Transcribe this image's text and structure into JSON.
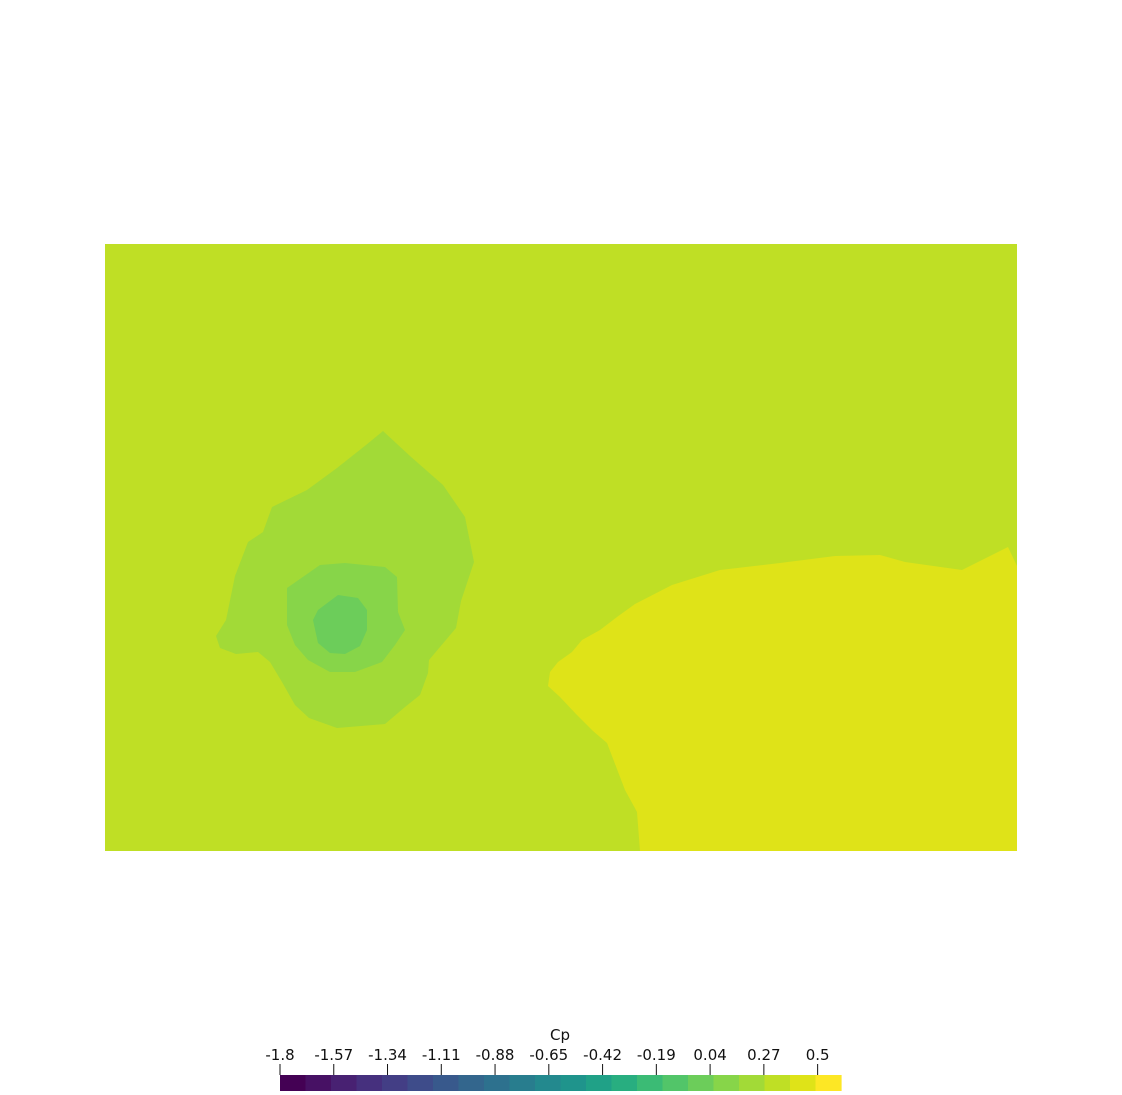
{
  "chart_data": {
    "type": "heatmap",
    "title": "",
    "variable": "Cp",
    "colorbar": {
      "title": "Cp",
      "tick_labels": [
        "-1.8",
        "-1.57",
        "-1.34",
        "-1.11",
        "-0.88",
        "-0.65",
        "-0.42",
        "-0.19",
        "0.04",
        "0.27",
        "0.5"
      ],
      "tick_values": [
        -1.8,
        -1.57,
        -1.34,
        -1.11,
        -0.88,
        -0.65,
        -0.42,
        -0.19,
        0.04,
        0.27,
        0.5
      ],
      "range": [
        -1.8,
        0.6
      ],
      "band_count": 22,
      "colormap": "viridis",
      "band_colors": [
        "#440154",
        "#471164",
        "#482172",
        "#46307e",
        "#433e85",
        "#3e4c8a",
        "#38598c",
        "#33668d",
        "#2d718e",
        "#287d8e",
        "#23898e",
        "#1f948c",
        "#20a187",
        "#28ae80",
        "#3bbb75",
        "#52c569",
        "#6ccd5a",
        "#87d549",
        "#a2da37",
        "#bfdf25",
        "#dfe318",
        "#fde725"
      ],
      "placement": "bottom-center"
    },
    "field": {
      "background_level": 0.295,
      "regions": [
        {
          "name": "high-pressure-region",
          "Cp_range": [
            0.37,
            0.49
          ],
          "color": "#dfe318"
        },
        {
          "name": "low-pressure-outer",
          "Cp_range": [
            0.19,
            0.26
          ],
          "color": "#a2da37"
        },
        {
          "name": "low-pressure-middle",
          "Cp_range": [
            0.12,
            0.19
          ],
          "color": "#87d549"
        },
        {
          "name": "low-pressure-core",
          "Cp_range": [
            0.04,
            0.12
          ],
          "color": "#6ccd5a"
        }
      ],
      "background_color": "#bfdf25"
    }
  }
}
